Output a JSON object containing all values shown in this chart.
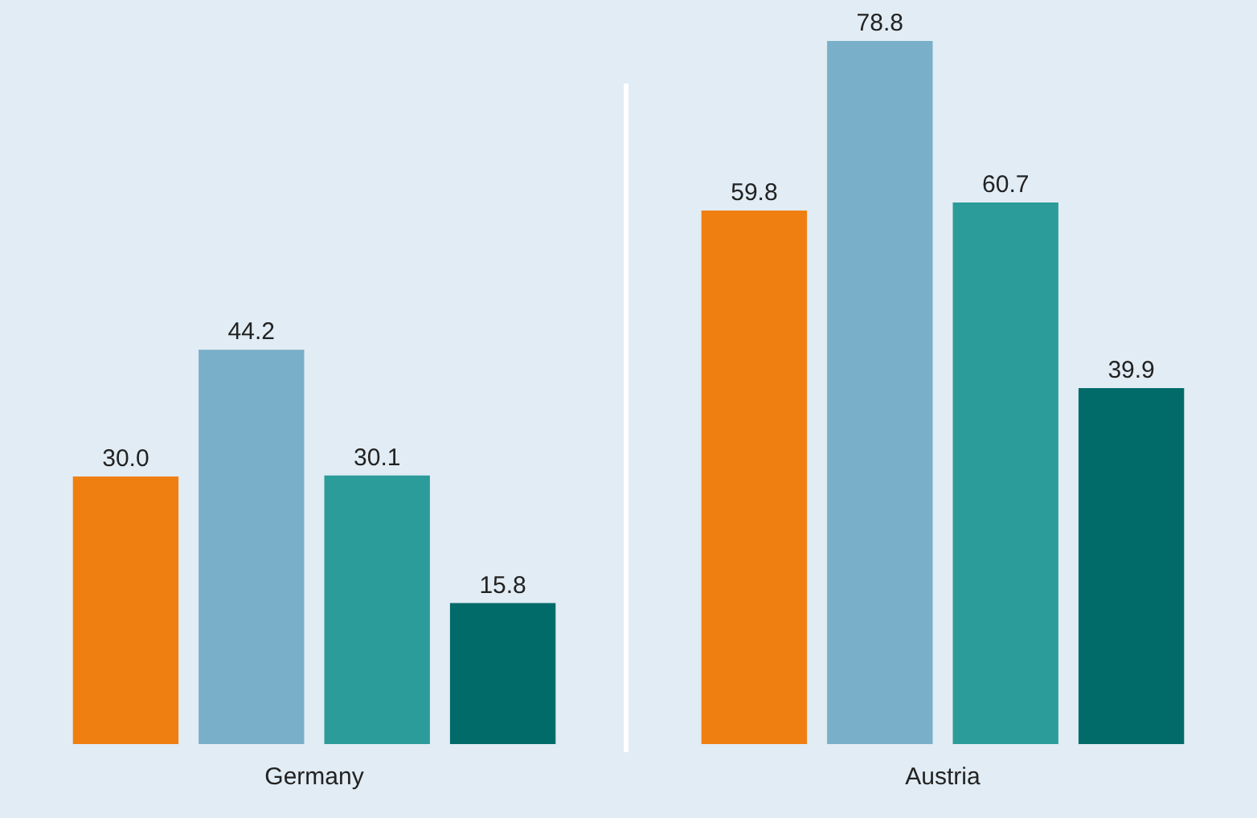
{
  "chart_data": {
    "type": "bar",
    "categories": [
      "Germany",
      "Austria"
    ],
    "series": [
      {
        "color": "#f07f12",
        "values": [
          30.0,
          59.8
        ],
        "value_labels": [
          "30.0",
          "59.8"
        ]
      },
      {
        "color": "#79afc9",
        "values": [
          44.2,
          78.8
        ],
        "value_labels": [
          "44.2",
          "78.8"
        ]
      },
      {
        "color": "#2b9c99",
        "values": [
          30.1,
          60.7
        ],
        "value_labels": [
          "30.1",
          "60.7"
        ]
      },
      {
        "color": "#006b68",
        "values": [
          15.8,
          39.9
        ],
        "value_labels": [
          "15.8",
          "39.9"
        ]
      }
    ],
    "legend": false,
    "grid": false
  }
}
